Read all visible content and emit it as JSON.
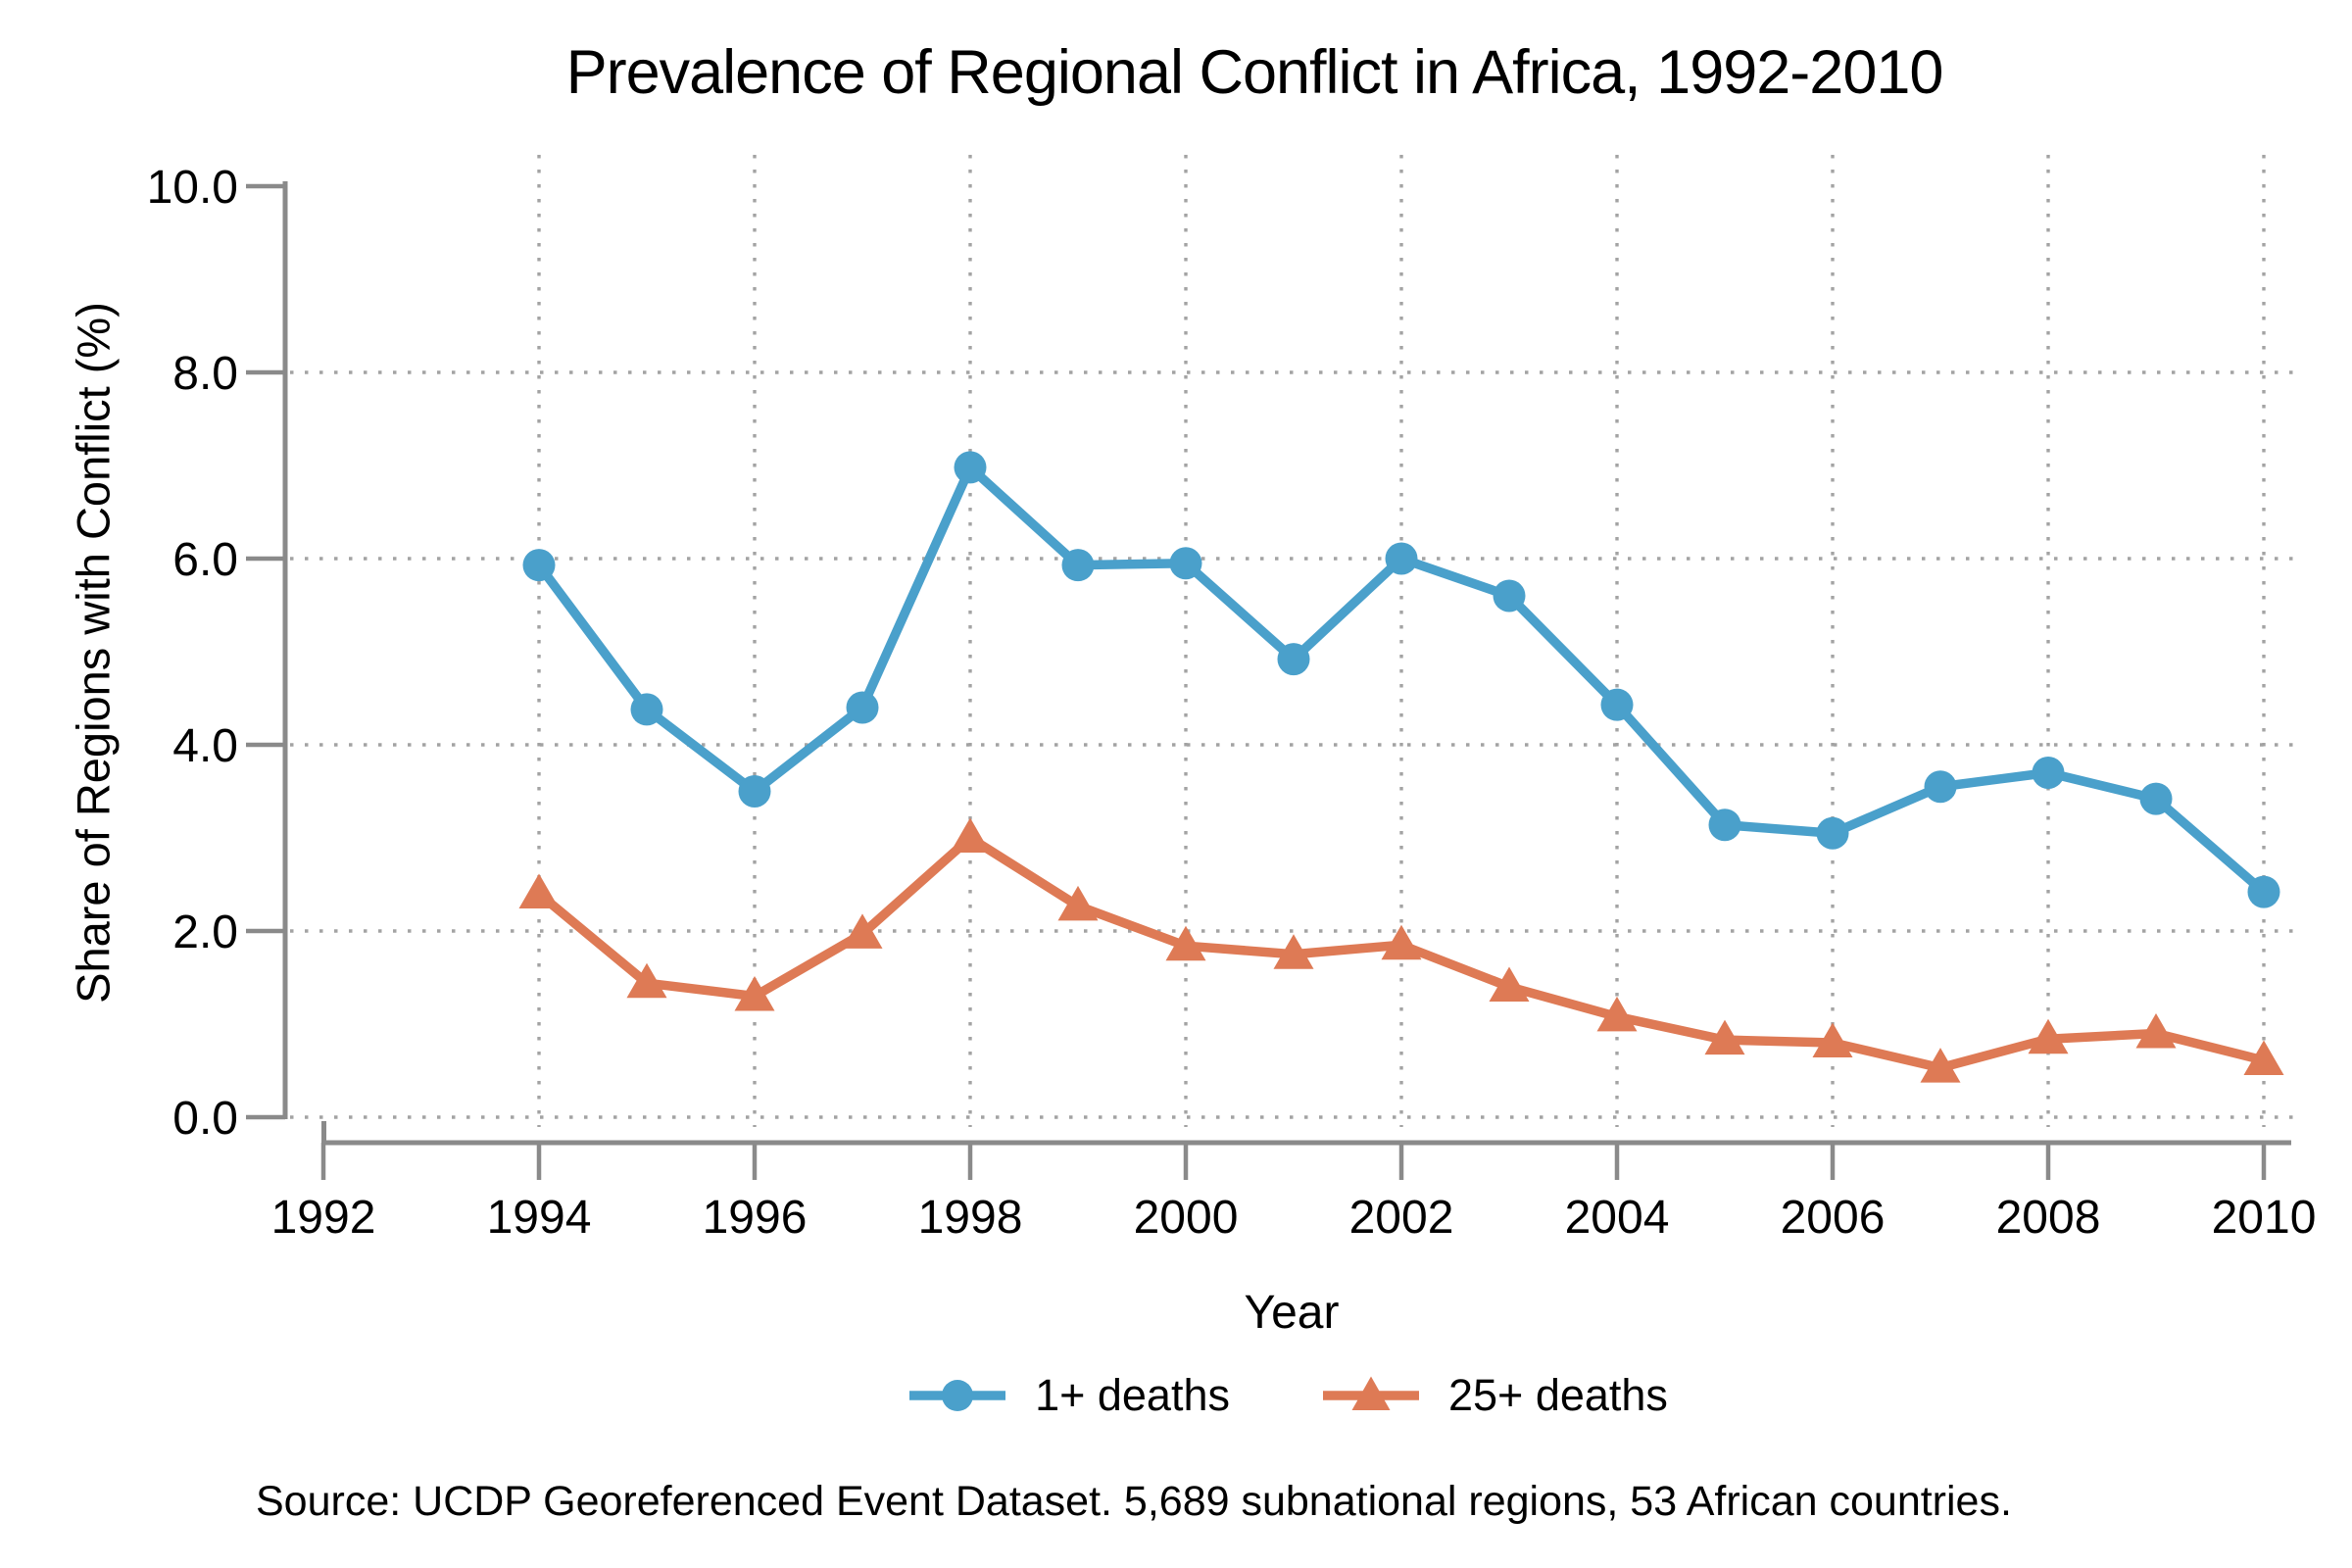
{
  "title": "Prevalence of Regional Conflict in Africa, 1992-2010",
  "axes": {
    "x_label": "Year",
    "y_label": "Share of Regions with Conflict (%)"
  },
  "legend": {
    "items": [
      {
        "label": "1+ deaths",
        "marker": "circle",
        "color": "#4AA0CB"
      },
      {
        "label": "25+ deaths",
        "marker": "triangle",
        "color": "#DE7A55"
      }
    ]
  },
  "source_note": "Source: UCDP Georeferenced Event Dataset. 5,689 subnational regions, 53 African countries.",
  "colors": {
    "series_blue": "#4AA0CB",
    "series_orange": "#DE7A55",
    "axis_gray": "#8A8A8A",
    "grid_gray": "#A3A3A3",
    "text": "#000000",
    "background": "#FFFFFF"
  },
  "chart_data": {
    "type": "line",
    "title": "Prevalence of Regional Conflict in Africa, 1992-2010",
    "xlabel": "Year",
    "ylabel": "Share of Regions with Conflict (%)",
    "xlim": [
      1992,
      2010
    ],
    "ylim": [
      0,
      10
    ],
    "x_ticks": [
      1992,
      1994,
      1996,
      1998,
      2000,
      2002,
      2004,
      2006,
      2008,
      2010
    ],
    "x_tick_labels": [
      "1992",
      "1994",
      "1996",
      "1998",
      "2000",
      "2002",
      "2004",
      "2006",
      "2008",
      "2010"
    ],
    "y_ticks": [
      0,
      2,
      4,
      6,
      8,
      10
    ],
    "y_tick_labels": [
      "0.0",
      "2.0",
      "4.0",
      "6.0",
      "8.0",
      "10.0"
    ],
    "grid": {
      "style": "dotted",
      "h_values": [
        0,
        2,
        4,
        6,
        8
      ],
      "v_values": [
        1994,
        1996,
        1998,
        2000,
        2002,
        2004,
        2006,
        2008,
        2010
      ]
    },
    "legend_position": "bottom",
    "x": [
      1994,
      1995,
      1996,
      1997,
      1998,
      1999,
      2000,
      2001,
      2002,
      2003,
      2004,
      2005,
      2006,
      2007,
      2008,
      2009,
      2010
    ],
    "series": [
      {
        "name": "1+ deaths",
        "marker": "circle",
        "color": "#4AA0CB",
        "values": [
          5.93,
          4.38,
          3.5,
          4.4,
          6.98,
          5.93,
          5.95,
          4.92,
          6.0,
          5.6,
          4.43,
          3.14,
          3.05,
          3.55,
          3.7,
          3.42,
          2.42
        ]
      },
      {
        "name": "25+ deaths",
        "marker": "triangle",
        "color": "#DE7A55",
        "values": [
          2.4,
          1.44,
          1.3,
          1.97,
          3.0,
          2.27,
          1.84,
          1.75,
          1.85,
          1.4,
          1.08,
          0.83,
          0.8,
          0.53,
          0.84,
          0.9,
          0.61
        ]
      }
    ]
  }
}
